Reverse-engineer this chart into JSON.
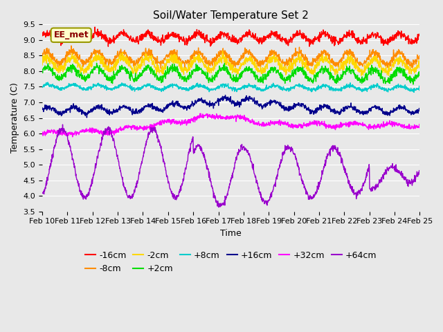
{
  "title": "Soil/Water Temperature Set 2",
  "xlabel": "Time",
  "ylabel": "Temperature (C)",
  "ylim": [
    3.5,
    9.5
  ],
  "yticks": [
    3.5,
    4.0,
    4.5,
    5.0,
    5.5,
    6.0,
    6.5,
    7.0,
    7.5,
    8.0,
    8.5,
    9.0,
    9.5
  ],
  "xtick_labels": [
    "Feb 10",
    "Feb 11",
    "Feb 12",
    "Feb 13",
    "Feb 14",
    "Feb 15",
    "Feb 16",
    "Feb 17",
    "Feb 18",
    "Feb 19",
    "Feb 20",
    "Feb 21",
    "Feb 22",
    "Feb 23",
    "Feb 24",
    "Feb 25"
  ],
  "annotation": "EE_met",
  "annotation_color": "#8B0000",
  "annotation_bg": "#FFFFCC",
  "series": [
    {
      "label": "-16cm",
      "color": "#FF0000"
    },
    {
      "label": "-8cm",
      "color": "#FF8C00"
    },
    {
      "label": "-2cm",
      "color": "#FFD700"
    },
    {
      "label": "+2cm",
      "color": "#00DD00"
    },
    {
      "label": "+8cm",
      "color": "#00CCCC"
    },
    {
      "label": "+16cm",
      "color": "#00008B"
    },
    {
      "label": "+32cm",
      "color": "#FF00FF"
    },
    {
      "label": "+64cm",
      "color": "#9900CC"
    }
  ],
  "background_color": "#E8E8E8",
  "plot_bg_color": "#E8E8E8",
  "title_fontsize": 11,
  "axis_label_fontsize": 9,
  "tick_fontsize": 8,
  "legend_fontsize": 9,
  "n_points": 1500
}
